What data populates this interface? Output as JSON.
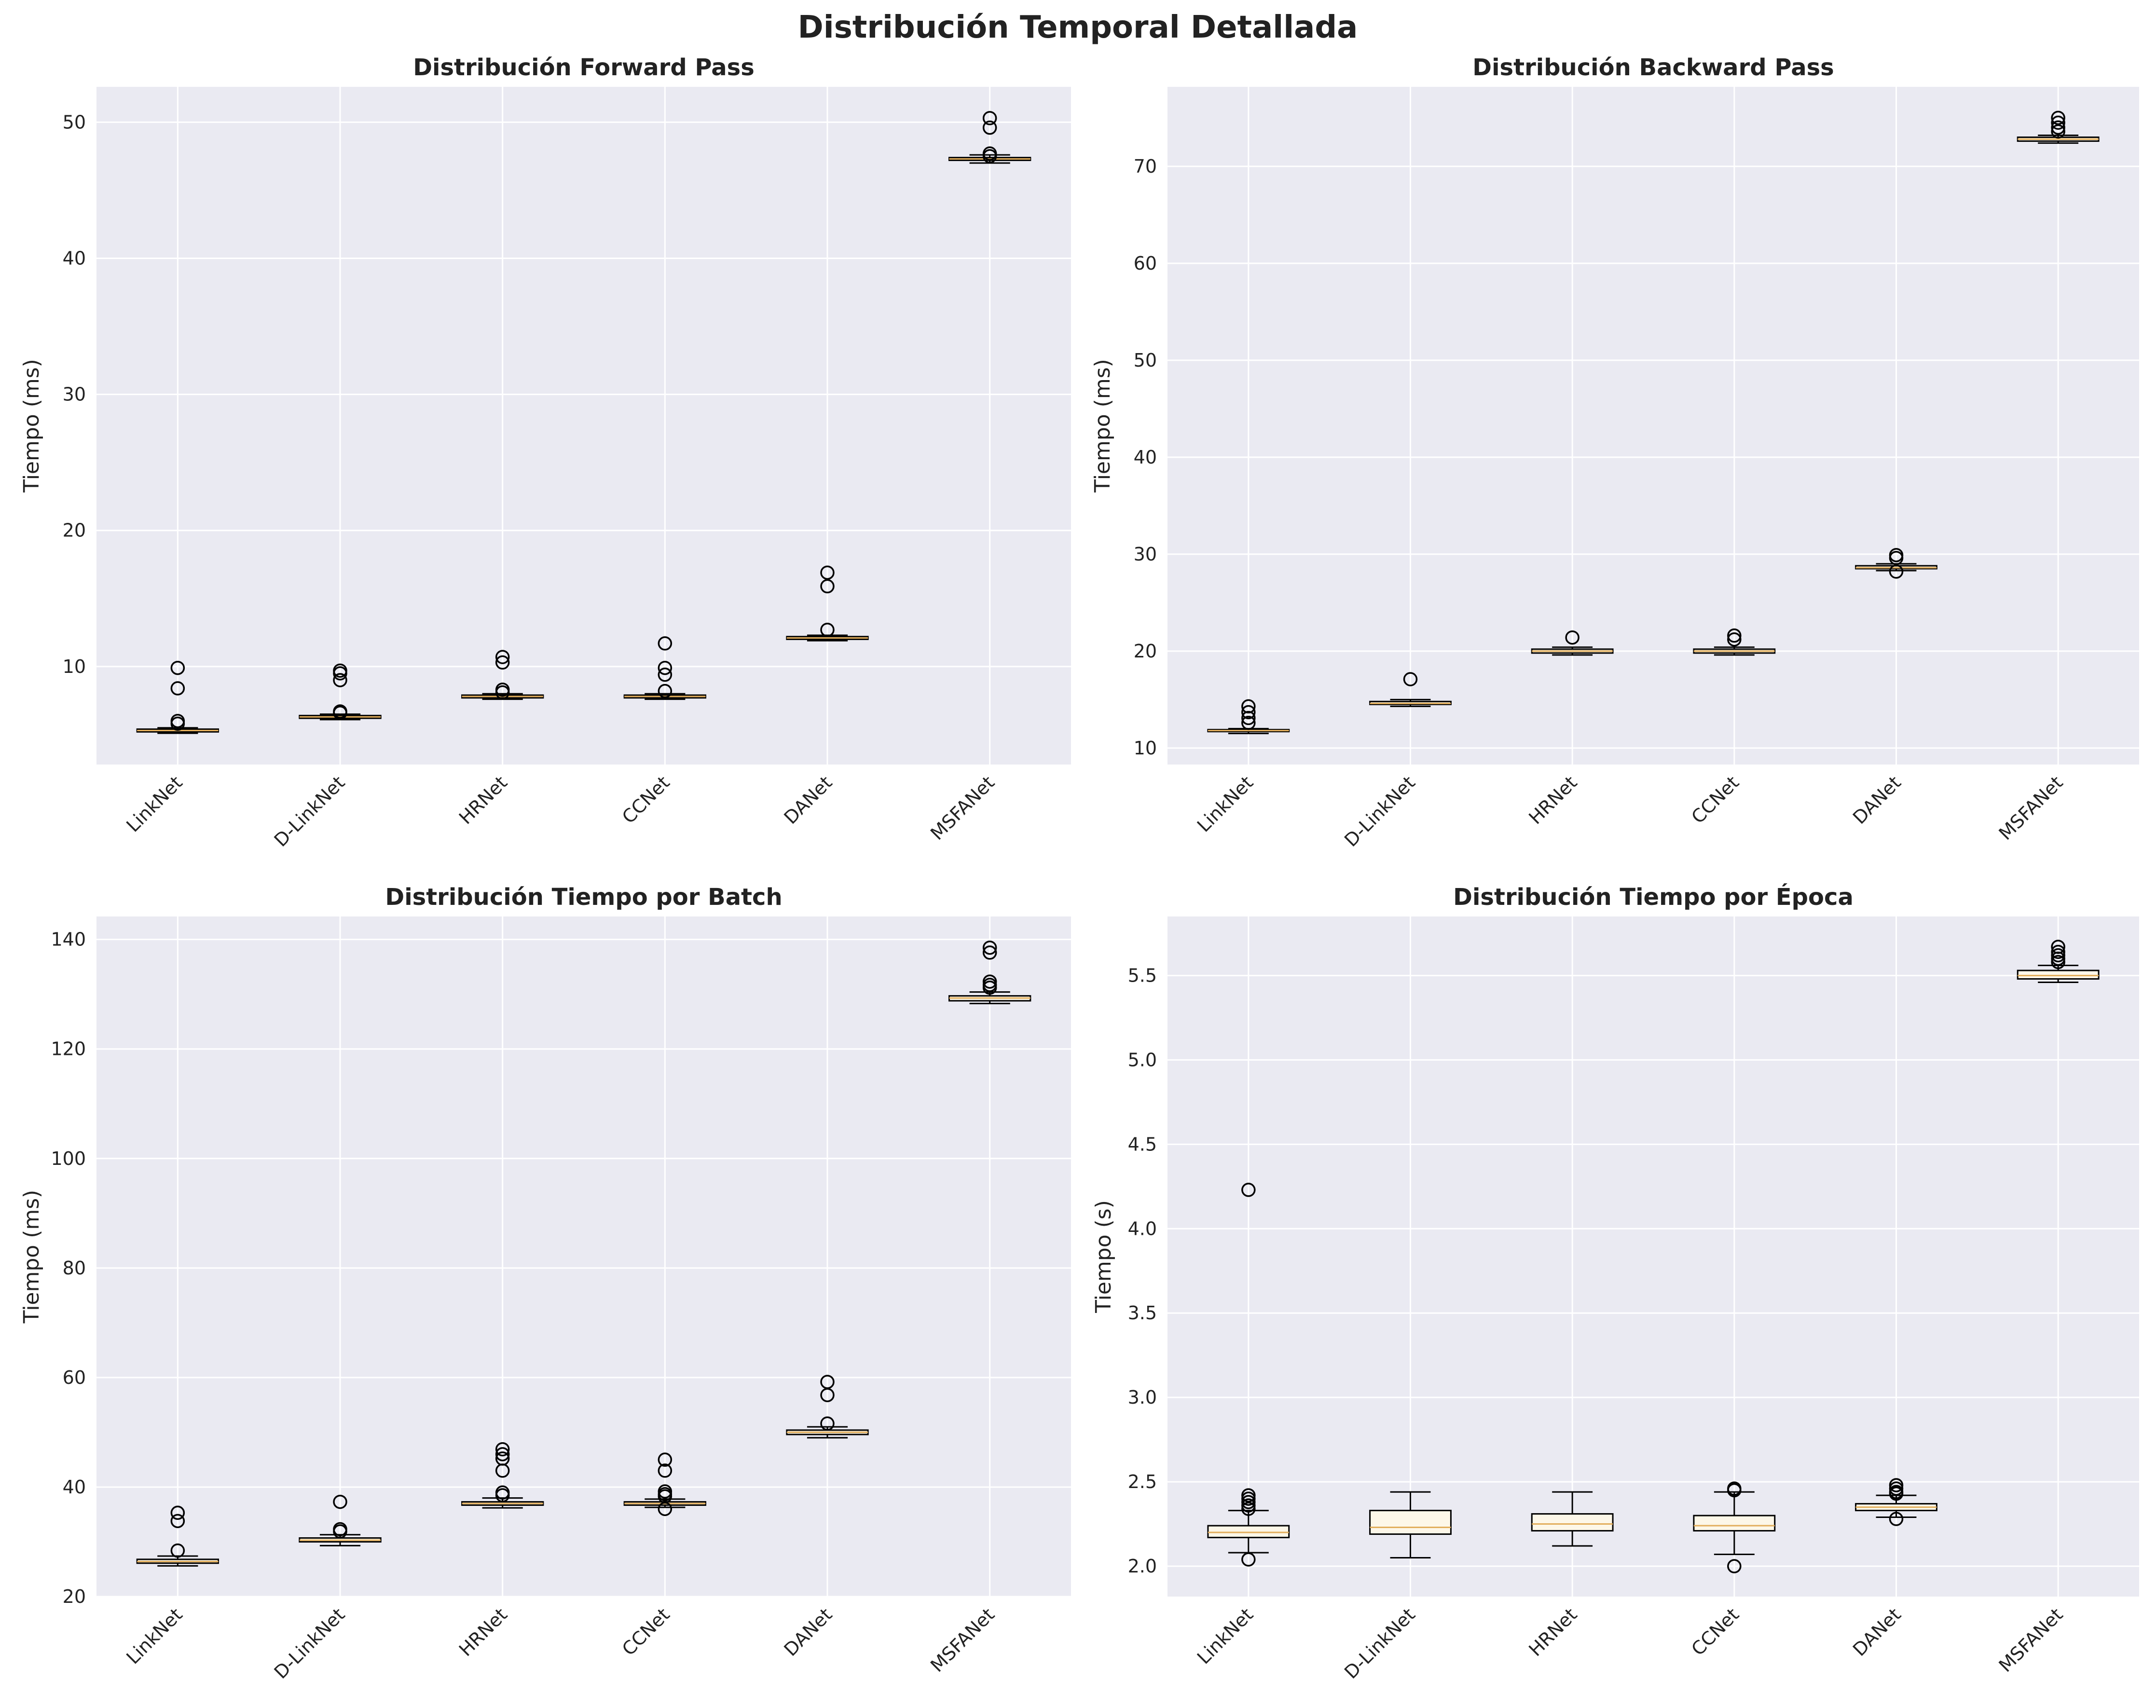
{
  "figure": {
    "title": "Distribución Temporal Detallada",
    "background": "#ffffff",
    "plot_background": "#eaeaf2",
    "grid_color": "#ffffff",
    "box_edge_color": "#000000",
    "box_fill_color": "#fdf7e8",
    "median_color": "#e2ae5c"
  },
  "chart_data": [
    {
      "type": "boxplot",
      "title": "Distribución Forward Pass",
      "xlabel": "",
      "ylabel": "Tiempo (ms)",
      "ylim": [
        2.8,
        52.6
      ],
      "yticks": [
        10,
        20,
        30,
        40,
        50
      ],
      "tick_decimals": 0,
      "grid": true,
      "categories": [
        "LinkNet",
        "D-LinkNet",
        "HRNet",
        "CCNet",
        "DANet",
        "MSFANet"
      ],
      "boxes": [
        {
          "whislo": 5.1,
          "q1": 5.2,
          "med": 5.3,
          "q3": 5.4,
          "whishi": 5.5,
          "fliers": [
            9.9,
            8.4,
            6.0,
            5.8
          ]
        },
        {
          "whislo": 6.1,
          "q1": 6.2,
          "med": 6.3,
          "q3": 6.4,
          "whishi": 6.5,
          "fliers": [
            9.7,
            9.5,
            9.0,
            6.7,
            6.6
          ]
        },
        {
          "whislo": 7.6,
          "q1": 7.7,
          "med": 7.8,
          "q3": 7.9,
          "whishi": 8.0,
          "fliers": [
            10.7,
            10.3,
            8.3,
            8.1
          ]
        },
        {
          "whislo": 7.6,
          "q1": 7.7,
          "med": 7.8,
          "q3": 7.9,
          "whishi": 8.0,
          "fliers": [
            11.7,
            9.9,
            9.4,
            8.2
          ]
        },
        {
          "whislo": 11.9,
          "q1": 12.0,
          "med": 12.1,
          "q3": 12.2,
          "whishi": 12.3,
          "fliers": [
            16.9,
            15.9,
            12.7
          ]
        },
        {
          "whislo": 47.0,
          "q1": 47.2,
          "med": 47.3,
          "q3": 47.4,
          "whishi": 47.6,
          "fliers": [
            50.3,
            49.6,
            47.7,
            47.5
          ]
        }
      ]
    },
    {
      "type": "boxplot",
      "title": "Distribución Backward Pass",
      "xlabel": "",
      "ylabel": "Tiempo (ms)",
      "ylim": [
        8.3,
        78.2
      ],
      "yticks": [
        10,
        20,
        30,
        40,
        50,
        60,
        70
      ],
      "tick_decimals": 0,
      "grid": true,
      "categories": [
        "LinkNet",
        "D-LinkNet",
        "HRNet",
        "CCNet",
        "DANet",
        "MSFANet"
      ],
      "boxes": [
        {
          "whislo": 11.5,
          "q1": 11.7,
          "med": 11.8,
          "q3": 11.9,
          "whishi": 12.0,
          "fliers": [
            14.3,
            13.7,
            13.1,
            12.6
          ]
        },
        {
          "whislo": 14.3,
          "q1": 14.5,
          "med": 14.6,
          "q3": 14.8,
          "whishi": 15.0,
          "fliers": [
            17.1
          ]
        },
        {
          "whislo": 19.6,
          "q1": 19.8,
          "med": 20.0,
          "q3": 20.2,
          "whishi": 20.4,
          "fliers": [
            21.4
          ]
        },
        {
          "whislo": 19.6,
          "q1": 19.8,
          "med": 20.0,
          "q3": 20.2,
          "whishi": 20.4,
          "fliers": [
            21.6,
            21.2
          ]
        },
        {
          "whislo": 28.3,
          "q1": 28.5,
          "med": 28.6,
          "q3": 28.8,
          "whishi": 29.0,
          "fliers": [
            29.9,
            29.6,
            28.2
          ]
        },
        {
          "whislo": 72.4,
          "q1": 72.6,
          "med": 72.8,
          "q3": 73.0,
          "whishi": 73.2,
          "fliers": [
            75.0,
            74.5,
            74.0,
            73.6
          ]
        }
      ]
    },
    {
      "type": "boxplot",
      "title": "Distribución Tiempo por Batch",
      "xlabel": "",
      "ylabel": "Tiempo (ms)",
      "ylim": [
        20,
        144.2
      ],
      "yticks": [
        20,
        40,
        60,
        80,
        100,
        120,
        140
      ],
      "tick_decimals": 0,
      "grid": true,
      "categories": [
        "LinkNet",
        "D-LinkNet",
        "HRNet",
        "CCNet",
        "DANet",
        "MSFANet"
      ],
      "boxes": [
        {
          "whislo": 25.6,
          "q1": 26.1,
          "med": 26.4,
          "q3": 26.8,
          "whishi": 27.4,
          "fliers": [
            35.3,
            33.8,
            28.4
          ]
        },
        {
          "whislo": 29.3,
          "q1": 30.0,
          "med": 30.3,
          "q3": 30.7,
          "whishi": 31.3,
          "fliers": [
            37.3,
            32.3,
            31.9
          ]
        },
        {
          "whislo": 36.2,
          "q1": 36.7,
          "med": 37.0,
          "q3": 37.3,
          "whishi": 38.0,
          "fliers": [
            46.9,
            46.0,
            45.2,
            43.0,
            39.0,
            38.5
          ]
        },
        {
          "whislo": 36.3,
          "q1": 36.7,
          "med": 37.0,
          "q3": 37.3,
          "whishi": 37.8,
          "fliers": [
            45.0,
            43.0,
            39.2,
            38.7,
            38.3,
            36.0
          ]
        },
        {
          "whislo": 49.0,
          "q1": 49.6,
          "med": 50.0,
          "q3": 50.4,
          "whishi": 51.0,
          "fliers": [
            59.2,
            56.8,
            51.6
          ]
        },
        {
          "whislo": 128.3,
          "q1": 128.8,
          "med": 129.3,
          "q3": 129.7,
          "whishi": 130.4,
          "fliers": [
            138.5,
            137.6,
            132.3,
            131.7,
            131.2
          ]
        }
      ]
    },
    {
      "type": "boxplot",
      "title": "Distribución Tiempo por Época",
      "xlabel": "",
      "ylabel": "Tiempo (s)",
      "ylim": [
        1.82,
        5.85
      ],
      "yticks": [
        2.0,
        2.5,
        3.0,
        3.5,
        4.0,
        4.5,
        5.0,
        5.5
      ],
      "tick_decimals": 1,
      "grid": true,
      "categories": [
        "LinkNet",
        "D-LinkNet",
        "HRNet",
        "CCNet",
        "DANet",
        "MSFANet"
      ],
      "boxes": [
        {
          "whislo": 2.08,
          "q1": 2.17,
          "med": 2.2,
          "q3": 2.24,
          "whishi": 2.33,
          "fliers": [
            4.23,
            2.42,
            2.4,
            2.38,
            2.36,
            2.34,
            2.04
          ]
        },
        {
          "whislo": 2.05,
          "q1": 2.19,
          "med": 2.23,
          "q3": 2.33,
          "whishi": 2.44,
          "fliers": []
        },
        {
          "whislo": 2.12,
          "q1": 2.21,
          "med": 2.25,
          "q3": 2.31,
          "whishi": 2.44,
          "fliers": []
        },
        {
          "whislo": 2.07,
          "q1": 2.21,
          "med": 2.24,
          "q3": 2.3,
          "whishi": 2.44,
          "fliers": [
            2.46,
            2.45,
            2.0
          ]
        },
        {
          "whislo": 2.29,
          "q1": 2.33,
          "med": 2.35,
          "q3": 2.37,
          "whishi": 2.42,
          "fliers": [
            2.48,
            2.46,
            2.44,
            2.43,
            2.28
          ]
        },
        {
          "whislo": 5.46,
          "q1": 5.48,
          "med": 5.5,
          "q3": 5.53,
          "whishi": 5.56,
          "fliers": [
            5.67,
            5.64,
            5.62,
            5.6,
            5.58
          ]
        }
      ]
    }
  ]
}
